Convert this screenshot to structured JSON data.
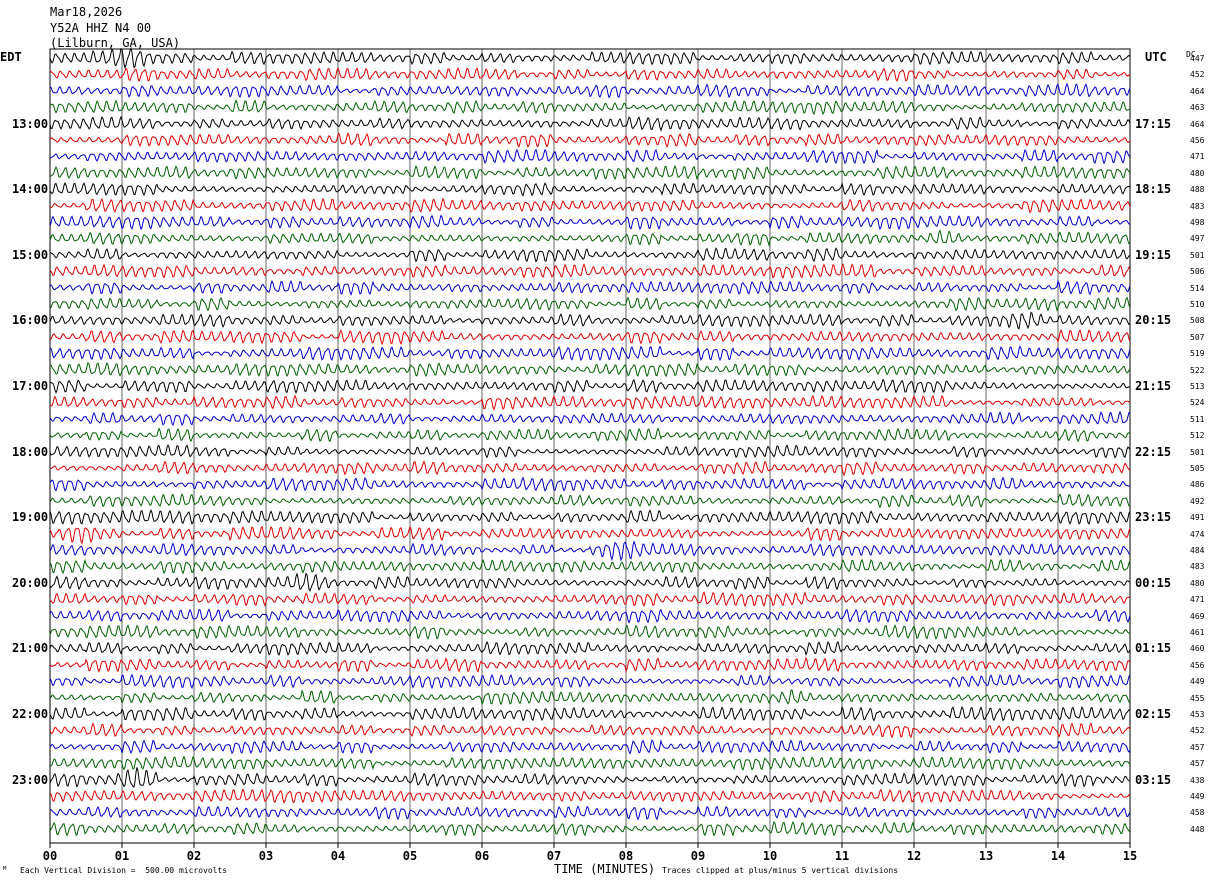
{
  "header": {
    "date": "Mar18,2026",
    "station": "Y52A HHZ N4 00",
    "location": "(Lilburn, GA, USA)"
  },
  "labels": {
    "left_zone": "EDT",
    "right_zone": "UTC",
    "dc_header": "DC",
    "xlabel": "TIME (MINUTES)"
  },
  "footer": {
    "scale_note": "Each Vertical Division =  500.00 microvolts",
    "clip_note": "Traces clipped at plus/minus 5 vertical divisions"
  },
  "chart_data": {
    "type": "line",
    "title": "Y52A HHZ N4 00",
    "xlabel": "TIME (MINUTES)",
    "xlim": [
      0,
      15
    ],
    "x_ticks": [
      "00",
      "01",
      "02",
      "03",
      "04",
      "05",
      "06",
      "07",
      "08",
      "09",
      "10",
      "11",
      "12",
      "13",
      "14",
      "15"
    ],
    "trace_colors": [
      "#000000",
      "#e00000",
      "#0000cc",
      "#006000"
    ],
    "left_time_labels": [
      "13:00",
      "14:00",
      "15:00",
      "16:00",
      "17:00",
      "18:00",
      "19:00",
      "20:00",
      "21:00",
      "22:00",
      "23:00"
    ],
    "right_time_labels": [
      "17:15",
      "18:15",
      "19:15",
      "20:15",
      "21:15",
      "22:15",
      "23:15",
      "00:15",
      "01:15",
      "02:15",
      "03:15"
    ],
    "dc_offsets": [
      447,
      452,
      464,
      463,
      464,
      456,
      471,
      480,
      488,
      483,
      498,
      497,
      501,
      506,
      514,
      510,
      508,
      507,
      519,
      522,
      513,
      524,
      511,
      512,
      501,
      505,
      486,
      492,
      491,
      474,
      484,
      483,
      480,
      471,
      469,
      461,
      460,
      456,
      449,
      455,
      453,
      452,
      457,
      457,
      438,
      449,
      458,
      448
    ],
    "notable_events": [
      {
        "row": 0,
        "minute": 1.1,
        "label": ""
      },
      {
        "row": 11,
        "minute": 12.4,
        "label": ""
      },
      {
        "row": 16,
        "minute": 13.6,
        "label": ""
      },
      {
        "row": 29,
        "minute": 0.4,
        "label": ""
      },
      {
        "row": 30,
        "minute": 7.9,
        "label": ""
      },
      {
        "row": 32,
        "minute": 3.6,
        "label": ""
      },
      {
        "row": 39,
        "minute": 10.3,
        "label": ""
      },
      {
        "row": 44,
        "minute": 1.2,
        "label": ""
      }
    ],
    "grid": true
  }
}
